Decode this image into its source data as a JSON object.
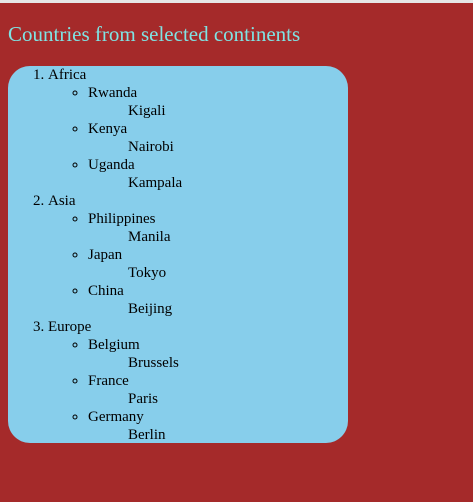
{
  "heading": "Countries from selected continents",
  "continents": [
    {
      "name": "Africa",
      "countries": [
        {
          "name": "Rwanda",
          "capital": "Kigali"
        },
        {
          "name": "Kenya",
          "capital": "Nairobi"
        },
        {
          "name": "Uganda",
          "capital": "Kampala"
        }
      ]
    },
    {
      "name": "Asia",
      "countries": [
        {
          "name": "Philippines",
          "capital": "Manila"
        },
        {
          "name": "Japan",
          "capital": "Tokyo"
        },
        {
          "name": "China",
          "capital": "Beijing"
        }
      ]
    },
    {
      "name": "Europe",
      "countries": [
        {
          "name": "Belgium",
          "capital": "Brussels"
        },
        {
          "name": "France",
          "capital": "Paris"
        },
        {
          "name": "Germany",
          "capital": "Berlin"
        }
      ]
    }
  ],
  "colors": {
    "page_background": "#a52a2a",
    "heading": "#7fe3e3",
    "panel_background": "#87ceeb"
  }
}
